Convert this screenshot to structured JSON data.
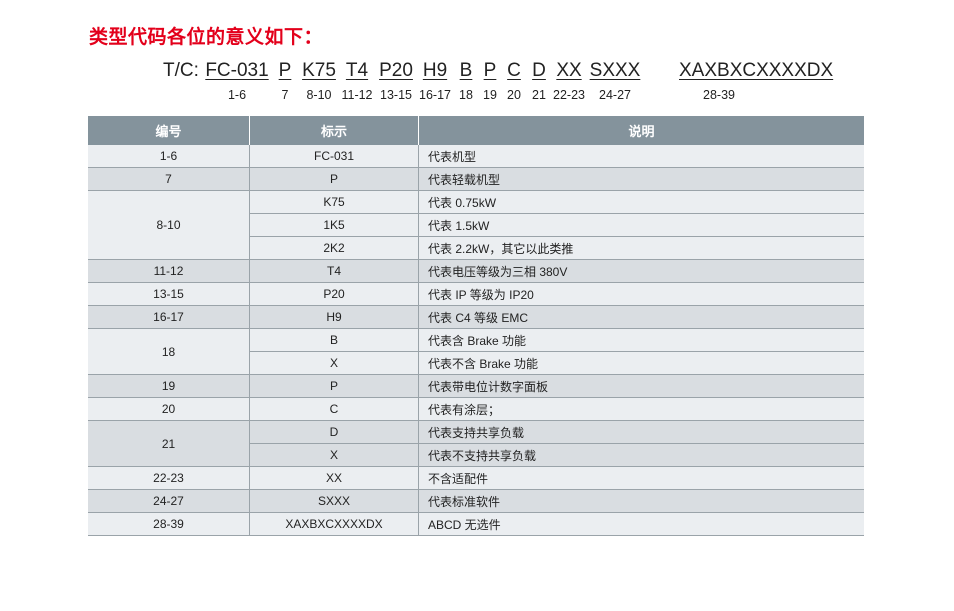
{
  "title": "类型代码各位的意义如下：",
  "code_prefix": "T/C:",
  "code_segments": [
    {
      "code": "FC-031",
      "pos": "1-6"
    },
    {
      "code": "P",
      "pos": "7"
    },
    {
      "code": "K75",
      "pos": "8-10"
    },
    {
      "code": "T4",
      "pos": "11-12"
    },
    {
      "code": "P20",
      "pos": "13-15"
    },
    {
      "code": "H9",
      "pos": "16-17"
    },
    {
      "code": "B",
      "pos": "18"
    },
    {
      "code": "P",
      "pos": "19"
    },
    {
      "code": "C",
      "pos": "20"
    },
    {
      "code": "D",
      "pos": "21"
    },
    {
      "code": "XX",
      "pos": "22-23"
    },
    {
      "code": "SXXX",
      "pos": "24-27"
    },
    {
      "code": "XAXBXCXXXXDX",
      "pos": "28-39"
    }
  ],
  "table": {
    "headers": [
      "编号",
      "标示",
      "说明"
    ],
    "groups": [
      {
        "num": "1-6",
        "rows": [
          [
            "FC-031",
            "代表机型"
          ]
        ]
      },
      {
        "num": "7",
        "rows": [
          [
            "P",
            "代表轻载机型"
          ]
        ]
      },
      {
        "num": "8-10",
        "rows": [
          [
            "K75",
            "代表 0.75kW"
          ],
          [
            "1K5",
            "代表 1.5kW"
          ],
          [
            "2K2",
            "代表 2.2kW，其它以此类推"
          ]
        ]
      },
      {
        "num": "11-12",
        "rows": [
          [
            "T4",
            "代表电压等级为三相 380V"
          ]
        ]
      },
      {
        "num": "13-15",
        "rows": [
          [
            "P20",
            "代表 IP 等级为 IP20"
          ]
        ]
      },
      {
        "num": "16-17",
        "rows": [
          [
            "H9",
            "代表 C4 等级 EMC"
          ]
        ]
      },
      {
        "num": "18",
        "rows": [
          [
            "B",
            "代表含 Brake 功能"
          ],
          [
            "X",
            "代表不含 Brake 功能"
          ]
        ]
      },
      {
        "num": "19",
        "rows": [
          [
            "P",
            "代表带电位计数字面板"
          ]
        ]
      },
      {
        "num": "20",
        "rows": [
          [
            "C",
            "代表有涂层；"
          ]
        ]
      },
      {
        "num": "21",
        "rows": [
          [
            "D",
            "代表支持共享负载"
          ],
          [
            "X",
            "代表不支持共享负载"
          ]
        ]
      },
      {
        "num": "22-23",
        "rows": [
          [
            "XX",
            "不含适配件"
          ]
        ]
      },
      {
        "num": "24-27",
        "rows": [
          [
            "SXXX",
            "代表标准软件"
          ]
        ]
      },
      {
        "num": "28-39",
        "rows": [
          [
            "XAXBXCXXXXDX",
            "ABCD 无选件"
          ]
        ]
      }
    ]
  },
  "colors": {
    "title": "#e3001b",
    "header_bg": "#84939c",
    "row_light": "#ebeef1",
    "row_gray": "#d9dde1"
  }
}
